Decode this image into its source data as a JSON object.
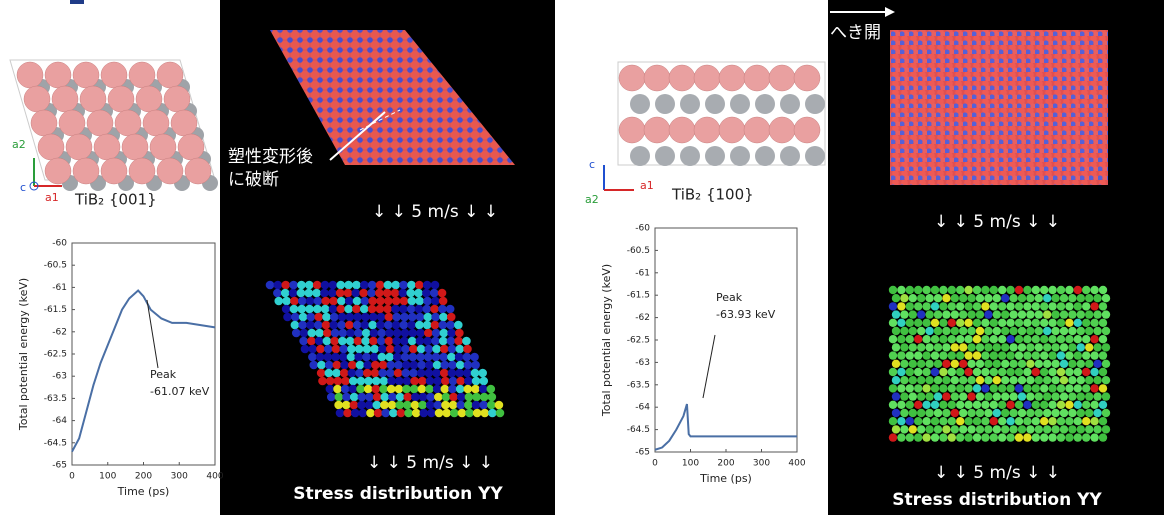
{
  "panels": {
    "left": {
      "label": "TiB₂ {001}",
      "axes": [
        "a2",
        "c",
        "a1"
      ],
      "note": [
        "塑性変形後",
        "に破断"
      ],
      "speed": "↓ ↓ 5 m/s ↓ ↓",
      "speed2": "↓ ↓ 5 m/s ↓ ↓",
      "caption": "Stress distribution YY"
    },
    "right": {
      "label": "TiB₂ {100}",
      "axes": [
        "c",
        "a1",
        "a2"
      ],
      "note": [
        "へき開"
      ],
      "speed": "↓ ↓ 5 m/s ↓ ↓",
      "speed2": "↓ ↓ 5 m/s ↓ ↓",
      "caption": "Stress distribution YY"
    }
  },
  "chart_data": [
    {
      "type": "line",
      "xlabel": "Time (ps)",
      "ylabel": "Total potential energy (keV)",
      "x": [
        0,
        20,
        40,
        60,
        80,
        100,
        120,
        140,
        160,
        185,
        200,
        220,
        250,
        280,
        320,
        360,
        400
      ],
      "values": [
        -64.7,
        -64.4,
        -63.8,
        -63.2,
        -62.7,
        -62.3,
        -61.9,
        -61.5,
        -61.25,
        -61.07,
        -61.2,
        -61.5,
        -61.7,
        -61.8,
        -61.8,
        -61.85,
        -61.9
      ],
      "color": "#4a6fa5",
      "xlim": [
        0,
        400
      ],
      "ylim": [
        -65,
        -60
      ],
      "xticks": [
        0,
        100,
        200,
        300,
        400
      ],
      "yticks": [
        -60,
        -60.5,
        -61,
        -61.5,
        -62,
        -62.5,
        -63,
        -63.5,
        -64,
        -64.5,
        -65
      ],
      "annotation": [
        "Peak",
        "-61.07 keV"
      ]
    },
    {
      "type": "line",
      "xlabel": "Time (ps)",
      "ylabel": "Total potential energy (keV)",
      "x": [
        0,
        20,
        40,
        60,
        80,
        90,
        95,
        100,
        200,
        300,
        400
      ],
      "values": [
        -64.95,
        -64.9,
        -64.75,
        -64.5,
        -64.2,
        -63.93,
        -64.6,
        -64.65,
        -64.65,
        -64.65,
        -64.65
      ],
      "color": "#4a6fa5",
      "xlim": [
        0,
        400
      ],
      "ylim": [
        -65,
        -60
      ],
      "xticks": [
        0,
        100,
        200,
        300,
        400
      ],
      "yticks": [
        -60,
        -60.5,
        -61,
        -61.5,
        -62,
        -62.5,
        -63,
        -63.5,
        -64,
        -64.5,
        -65
      ],
      "annotation": [
        "Peak",
        "-63.93 keV"
      ]
    }
  ]
}
